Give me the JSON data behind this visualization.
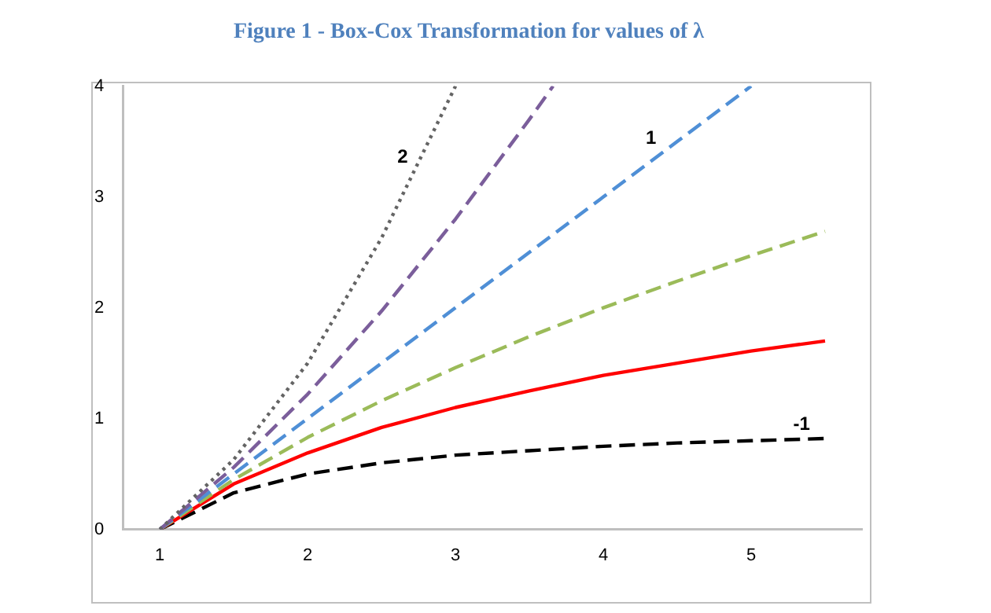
{
  "chart_data": {
    "type": "line",
    "title": "Figure 1 - Box-Cox Transformation for values of λ",
    "xlim": [
      0.75,
      5.75
    ],
    "xticks": [
      1,
      2,
      3,
      4,
      5
    ],
    "ylim": [
      0,
      4
    ],
    "yticks": [
      0,
      1,
      2,
      3,
      4
    ],
    "grid": false,
    "legend": false,
    "series": [
      {
        "color": "#646464",
        "line_style": "dotted",
        "x": [
          1,
          1.5,
          2,
          2.5,
          3
        ],
        "values": [
          0,
          0.63,
          1.5,
          2.63,
          4
        ]
      },
      {
        "color": "#7b5e9b",
        "line_style": "dashed",
        "x": [
          1,
          1.5,
          2,
          2.5,
          3,
          3.5,
          3.66
        ],
        "values": [
          0,
          0.56,
          1.22,
          1.97,
          2.8,
          3.7,
          4
        ]
      },
      {
        "color": "#4f8fd6",
        "line_style": "dashed",
        "x": [
          1,
          1.5,
          2,
          2.5,
          3,
          3.5,
          4,
          4.5,
          5
        ],
        "values": [
          0,
          0.5,
          1,
          1.5,
          2,
          2.5,
          3,
          3.5,
          4
        ]
      },
      {
        "color": "#9bbb59",
        "line_style": "dashed",
        "x": [
          1,
          1.5,
          2,
          2.5,
          3,
          3.5,
          4,
          4.5,
          5,
          5.5
        ],
        "values": [
          0,
          0.45,
          0.83,
          1.16,
          1.46,
          1.74,
          2,
          2.24,
          2.47,
          2.69
        ]
      },
      {
        "color": "#ff0000",
        "line_style": "solid",
        "x": [
          1,
          1.5,
          2,
          2.5,
          3,
          3.5,
          4,
          4.5,
          5,
          5.5
        ],
        "values": [
          0,
          0.41,
          0.69,
          0.92,
          1.1,
          1.25,
          1.39,
          1.5,
          1.61,
          1.7
        ]
      },
      {
        "color": "#000000",
        "line_style": "dashed",
        "x": [
          1,
          1.5,
          2,
          2.5,
          3,
          3.5,
          4,
          4.5,
          5,
          5.5
        ],
        "values": [
          0,
          0.33,
          0.5,
          0.6,
          0.67,
          0.71,
          0.75,
          0.78,
          0.8,
          0.82
        ]
      }
    ],
    "annotations": [
      {
        "text": "2",
        "x": 2.72,
        "y": 3.23
      },
      {
        "text": "1",
        "x": 4.4,
        "y": 3.4
      },
      {
        "text": "-1",
        "x": 5.44,
        "y": 0.82
      }
    ]
  }
}
